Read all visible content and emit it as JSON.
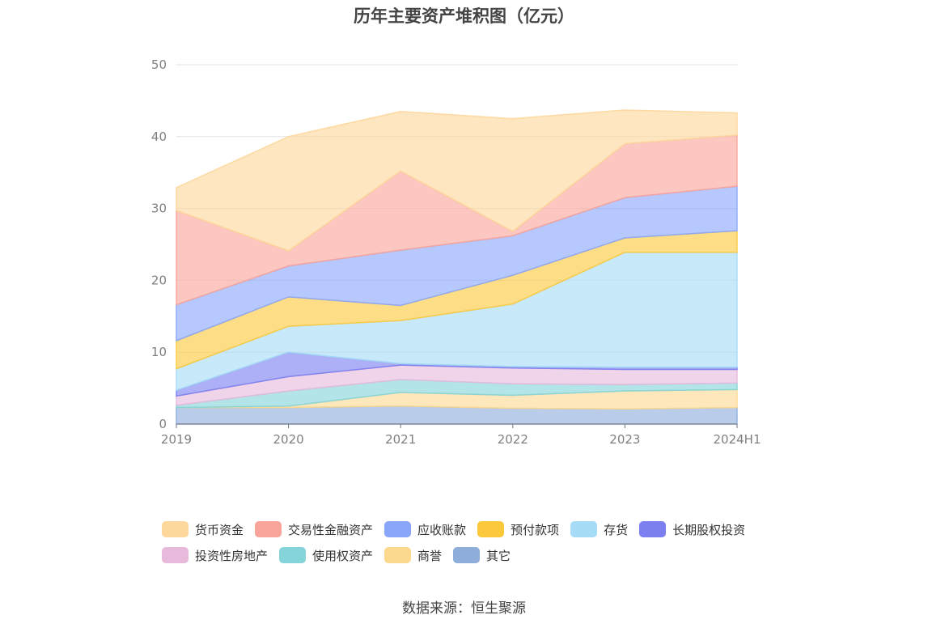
{
  "chart_data": {
    "type": "area",
    "stacked": true,
    "title": "历年主要资产堆积图（亿元）",
    "x": [
      "2019",
      "2020",
      "2021",
      "2022",
      "2023",
      "2024H1"
    ],
    "ylim": [
      0,
      50
    ],
    "yticks": [
      0,
      10,
      20,
      30,
      40,
      50
    ],
    "grid": true,
    "legend_position": "bottom",
    "series": [
      {
        "name": "其它",
        "color": "#8eaddb",
        "values": [
          2.3,
          2.3,
          2.5,
          2.2,
          2.1,
          2.3
        ]
      },
      {
        "name": "商誉",
        "color": "#fdd98f",
        "values": [
          0.0,
          0.2,
          1.9,
          1.8,
          2.5,
          2.5
        ]
      },
      {
        "name": "使用权资产",
        "color": "#84d4d9",
        "values": [
          0.3,
          2.1,
          1.8,
          1.6,
          0.9,
          0.9
        ]
      },
      {
        "name": "投资性房地产",
        "color": "#e7b9db",
        "values": [
          1.3,
          2.0,
          2.0,
          2.2,
          2.1,
          1.9
        ]
      },
      {
        "name": "长期股权投资",
        "color": "#7b7ff0",
        "values": [
          0.8,
          3.4,
          0.2,
          0.2,
          0.3,
          0.3
        ]
      },
      {
        "name": "存货",
        "color": "#a6dcf6",
        "values": [
          3.0,
          3.6,
          6.0,
          8.7,
          16.0,
          16.0
        ]
      },
      {
        "name": "预付款项",
        "color": "#fcc93d",
        "values": [
          3.9,
          4.1,
          2.1,
          4.0,
          2.0,
          3.0
        ]
      },
      {
        "name": "应收账款",
        "color": "#89a6fb",
        "values": [
          5.0,
          4.3,
          7.7,
          5.5,
          5.6,
          6.2
        ]
      },
      {
        "name": "交易性金融资产",
        "color": "#f9a49a",
        "values": [
          13.1,
          2.1,
          11.0,
          0.6,
          7.5,
          7.1
        ]
      },
      {
        "name": "货币资金",
        "color": "#fdd79b",
        "values": [
          3.2,
          15.9,
          8.3,
          15.7,
          4.7,
          3.1
        ]
      }
    ]
  },
  "legend": [
    {
      "label": "货币资金",
      "color": "#fdd79b"
    },
    {
      "label": "交易性金融资产",
      "color": "#f9a49a"
    },
    {
      "label": "应收账款",
      "color": "#89a6fb"
    },
    {
      "label": "预付款项",
      "color": "#fcc93d"
    },
    {
      "label": "存货",
      "color": "#a6dcf6"
    },
    {
      "label": "长期股权投资",
      "color": "#7b7ff0"
    },
    {
      "label": "投资性房地产",
      "color": "#e7b9db"
    },
    {
      "label": "使用权资产",
      "color": "#84d4d9"
    },
    {
      "label": "商誉",
      "color": "#fdd98f"
    },
    {
      "label": "其它",
      "color": "#8eaddb"
    }
  ],
  "source": "数据来源：恒生聚源"
}
